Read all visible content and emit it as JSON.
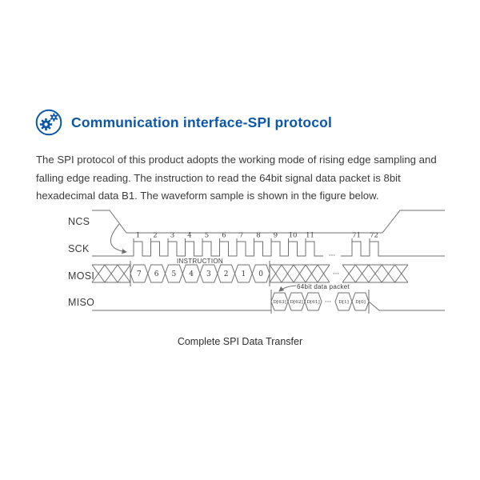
{
  "accent_color": "#0d57a8",
  "header": {
    "icon": "gears-icon",
    "title": "Communication interface-SPI protocol"
  },
  "intro": {
    "text": "The SPI protocol of this product adopts the working mode of rising edge sampling and falling edge reading. The instruction to read the 64bit signal data packet is 8bit hexadecimal data B1. The waveform sample is shown in the figure below."
  },
  "diagram": {
    "line_color": "#6f6f6f",
    "text_color": "#3a3a3a",
    "signal_labels": [
      "NCS",
      "SCK",
      "MOSI",
      "MISO"
    ],
    "sck": {
      "pulse_numbers_left": [
        "1",
        "2",
        "3",
        "4",
        "5",
        "6",
        "7",
        "8",
        "9",
        "10",
        "11"
      ],
      "pulse_numbers_right": [
        "71",
        "72"
      ],
      "gap_ellipsis": "···"
    },
    "mosi": {
      "instruction_label": "INSTRUCTION",
      "instruction_bits": [
        "7",
        "6",
        "5",
        "4",
        "3",
        "2",
        "1",
        "0"
      ],
      "gap_ellipsis": "···"
    },
    "miso": {
      "packet_label": "64bit data packet",
      "bits_left": [
        "D[63]",
        "D[62]",
        "D[61]"
      ],
      "gap_ellipsis": "···",
      "bits_right": [
        "D[1]",
        "D[0]"
      ]
    },
    "caption": "Complete SPI Data Transfer"
  }
}
